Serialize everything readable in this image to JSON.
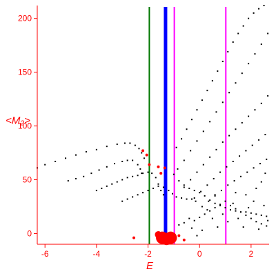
{
  "chart_data": {
    "type": "scatter",
    "xlabel": "E",
    "ylabel": "<M₂>",
    "xlim": [
      -6.3,
      2.7
    ],
    "ylim": [
      -10,
      212
    ],
    "xticks": [
      -6,
      -4,
      -2,
      0,
      2
    ],
    "yticks": [
      0,
      50,
      100,
      150,
      200
    ],
    "x_tick_labels": [
      "-6",
      "-4",
      "-2",
      "0",
      "2"
    ],
    "y_tick_labels": [
      "0",
      "50",
      "100",
      "150",
      "200"
    ],
    "grid": false,
    "colors": {
      "axes": "#ff0000",
      "points": "#000000",
      "highlight": "#ff0000",
      "line_green": "#007700",
      "line_blue": "#0000ff",
      "line_magenta": "#ff00ff"
    },
    "vertical_lines": [
      {
        "x": -1.95,
        "color": "#007700",
        "width": "thin"
      },
      {
        "x": -1.32,
        "color": "#0000ff",
        "width": "thick"
      },
      {
        "x": -0.98,
        "color": "#ff00ff",
        "width": "thin"
      },
      {
        "x": 1.02,
        "color": "#ff00ff",
        "width": "thin"
      }
    ],
    "series": [
      {
        "points": [
          [
            -6.3,
            61
          ],
          [
            -6.0,
            64
          ],
          [
            -5.6,
            67
          ],
          [
            -5.2,
            70
          ],
          [
            -4.8,
            73
          ],
          [
            -4.4,
            76
          ],
          [
            -4.0,
            78
          ],
          [
            -3.6,
            81
          ],
          [
            -3.2,
            83
          ],
          [
            -2.9,
            84
          ],
          [
            -2.7,
            84
          ],
          [
            -2.5,
            82
          ],
          [
            -2.35,
            79
          ],
          [
            -2.25,
            75
          ],
          [
            -2.15,
            70
          ]
        ]
      },
      {
        "points": [
          [
            -5.1,
            49
          ],
          [
            -4.8,
            51
          ],
          [
            -4.5,
            53
          ],
          [
            -4.2,
            56
          ],
          [
            -3.9,
            59
          ],
          [
            -3.6,
            62
          ],
          [
            -3.3,
            65
          ],
          [
            -3.0,
            67
          ],
          [
            -2.8,
            68
          ],
          [
            -2.6,
            68
          ],
          [
            -2.4,
            64
          ],
          [
            -2.3,
            60
          ],
          [
            -2.25,
            56
          ]
        ]
      },
      {
        "points": [
          [
            -4.0,
            40
          ],
          [
            -3.8,
            42
          ],
          [
            -3.6,
            44
          ],
          [
            -3.4,
            46
          ],
          [
            -3.2,
            48
          ],
          [
            -3.0,
            50
          ],
          [
            -2.8,
            52
          ],
          [
            -2.6,
            53
          ],
          [
            -2.4,
            54
          ],
          [
            -2.2,
            56
          ],
          [
            -2.0,
            57
          ],
          [
            -1.85,
            56
          ],
          [
            -1.7,
            52
          ],
          [
            -1.6,
            46
          ],
          [
            -1.5,
            40
          ],
          [
            -1.4,
            36
          ]
        ]
      },
      {
        "points": [
          [
            -3.0,
            30
          ],
          [
            -2.8,
            32
          ],
          [
            -2.6,
            34
          ],
          [
            -2.4,
            36
          ],
          [
            -2.2,
            38
          ],
          [
            -2.0,
            40
          ],
          [
            -1.8,
            42
          ],
          [
            -1.6,
            44
          ],
          [
            -1.4,
            43
          ],
          [
            -1.2,
            40
          ],
          [
            -1.05,
            37
          ],
          [
            -0.9,
            34
          ],
          [
            -0.7,
            33
          ],
          [
            -0.5,
            32
          ],
          [
            -0.3,
            32
          ],
          [
            -0.15,
            30
          ]
        ]
      },
      {
        "points": [
          [
            -0.85,
            60
          ],
          [
            -0.6,
            68
          ],
          [
            -0.35,
            77
          ],
          [
            -0.1,
            86
          ],
          [
            0.15,
            95
          ],
          [
            0.4,
            104
          ],
          [
            0.65,
            113
          ],
          [
            0.9,
            122
          ],
          [
            1.15,
            131
          ],
          [
            1.4,
            140
          ],
          [
            1.65,
            149
          ],
          [
            1.9,
            158
          ],
          [
            2.15,
            167
          ],
          [
            2.4,
            176
          ],
          [
            2.65,
            186
          ]
        ]
      },
      {
        "points": [
          [
            -0.6,
            43
          ],
          [
            -0.35,
            50
          ],
          [
            -0.1,
            57
          ],
          [
            0.15,
            64
          ],
          [
            0.4,
            71
          ],
          [
            0.65,
            78
          ],
          [
            0.9,
            85
          ],
          [
            1.15,
            91
          ],
          [
            1.4,
            97
          ],
          [
            1.65,
            103
          ],
          [
            1.9,
            109
          ],
          [
            2.15,
            115
          ],
          [
            2.4,
            121
          ],
          [
            2.65,
            128
          ]
        ]
      },
      {
        "points": [
          [
            -0.2,
            33
          ],
          [
            0.05,
            39
          ],
          [
            0.3,
            45
          ],
          [
            0.55,
            51
          ],
          [
            0.8,
            57
          ],
          [
            1.05,
            62
          ],
          [
            1.3,
            67
          ],
          [
            1.55,
            72
          ],
          [
            1.8,
            77
          ],
          [
            2.05,
            82
          ],
          [
            2.3,
            87
          ],
          [
            2.55,
            92
          ]
        ]
      },
      {
        "points": [
          [
            0.1,
            25
          ],
          [
            0.35,
            30
          ],
          [
            0.6,
            35
          ],
          [
            0.85,
            40
          ],
          [
            1.1,
            45
          ],
          [
            1.35,
            49
          ],
          [
            1.6,
            53
          ],
          [
            1.85,
            57
          ],
          [
            2.1,
            61
          ],
          [
            2.35,
            65
          ],
          [
            2.6,
            69
          ]
        ]
      },
      {
        "points": [
          [
            -0.9,
            80
          ],
          [
            -0.7,
            88
          ],
          [
            -0.5,
            97
          ],
          [
            -0.3,
            106
          ],
          [
            -0.1,
            115
          ],
          [
            0.1,
            124
          ],
          [
            0.3,
            133
          ],
          [
            0.5,
            142
          ],
          [
            0.7,
            151
          ],
          [
            0.9,
            160
          ],
          [
            1.1,
            169
          ],
          [
            1.3,
            178
          ],
          [
            1.5,
            186
          ],
          [
            1.7,
            193
          ],
          [
            1.9,
            200
          ],
          [
            2.1,
            205
          ],
          [
            2.3,
            209
          ],
          [
            2.5,
            212
          ]
        ]
      },
      {
        "points": [
          [
            -1.0,
            55
          ],
          [
            -0.8,
            49
          ],
          [
            -0.6,
            45
          ],
          [
            -0.4,
            42
          ],
          [
            -0.2,
            40
          ],
          [
            0.0,
            38
          ],
          [
            0.2,
            35
          ],
          [
            0.4,
            31
          ],
          [
            0.6,
            28
          ],
          [
            0.8,
            26
          ],
          [
            1.0,
            24
          ],
          [
            1.2,
            22
          ],
          [
            1.4,
            21
          ],
          [
            1.6,
            20
          ],
          [
            1.8,
            20
          ],
          [
            2.0,
            19
          ],
          [
            2.2,
            18
          ],
          [
            2.4,
            17
          ],
          [
            2.6,
            16
          ]
        ]
      },
      {
        "points": [
          [
            -0.2,
            12
          ],
          [
            0.0,
            15
          ],
          [
            0.2,
            18
          ],
          [
            0.4,
            21
          ],
          [
            0.6,
            24
          ],
          [
            0.8,
            27
          ],
          [
            1.0,
            30
          ],
          [
            1.2,
            26
          ],
          [
            1.4,
            23
          ],
          [
            1.6,
            20
          ],
          [
            1.8,
            17
          ],
          [
            2.0,
            14
          ],
          [
            2.2,
            11
          ],
          [
            2.4,
            9
          ],
          [
            2.6,
            7
          ]
        ]
      },
      {
        "points": [
          [
            -0.8,
            8
          ],
          [
            -0.6,
            10
          ],
          [
            -0.4,
            14
          ],
          [
            -0.3,
            5
          ],
          [
            -0.1,
            -2
          ],
          [
            0.1,
            3
          ],
          [
            0.3,
            22
          ],
          [
            0.5,
            14
          ],
          [
            0.7,
            6
          ],
          [
            0.9,
            18
          ],
          [
            1.1,
            11
          ],
          [
            1.3,
            28
          ],
          [
            1.5,
            14
          ],
          [
            1.7,
            6
          ],
          [
            1.9,
            24
          ],
          [
            2.1,
            30
          ],
          [
            2.3,
            4
          ],
          [
            2.5,
            26
          ],
          [
            2.65,
            12
          ],
          [
            1.8,
            36
          ],
          [
            2.2,
            42
          ],
          [
            1.4,
            38
          ],
          [
            0.6,
            36
          ],
          [
            2.4,
            48
          ],
          [
            2.55,
            56
          ]
        ]
      }
    ],
    "highlight_points": [
      [
        -1.28,
        -5,
        "large"
      ],
      [
        -1.45,
        -4,
        "large"
      ],
      [
        -1.12,
        -4,
        "large"
      ],
      [
        -1.6,
        -1,
        "medium"
      ],
      [
        -0.95,
        -5,
        "small"
      ],
      [
        -2.2,
        77,
        "small"
      ],
      [
        -2.05,
        73,
        "small"
      ],
      [
        -1.95,
        64,
        "small"
      ],
      [
        -1.6,
        62,
        "small"
      ],
      [
        -1.5,
        56,
        "small"
      ],
      [
        -1.35,
        61,
        "small"
      ],
      [
        -2.55,
        -4,
        "small"
      ],
      [
        -0.8,
        -2,
        "small"
      ],
      [
        -0.6,
        -6,
        "small"
      ]
    ]
  }
}
